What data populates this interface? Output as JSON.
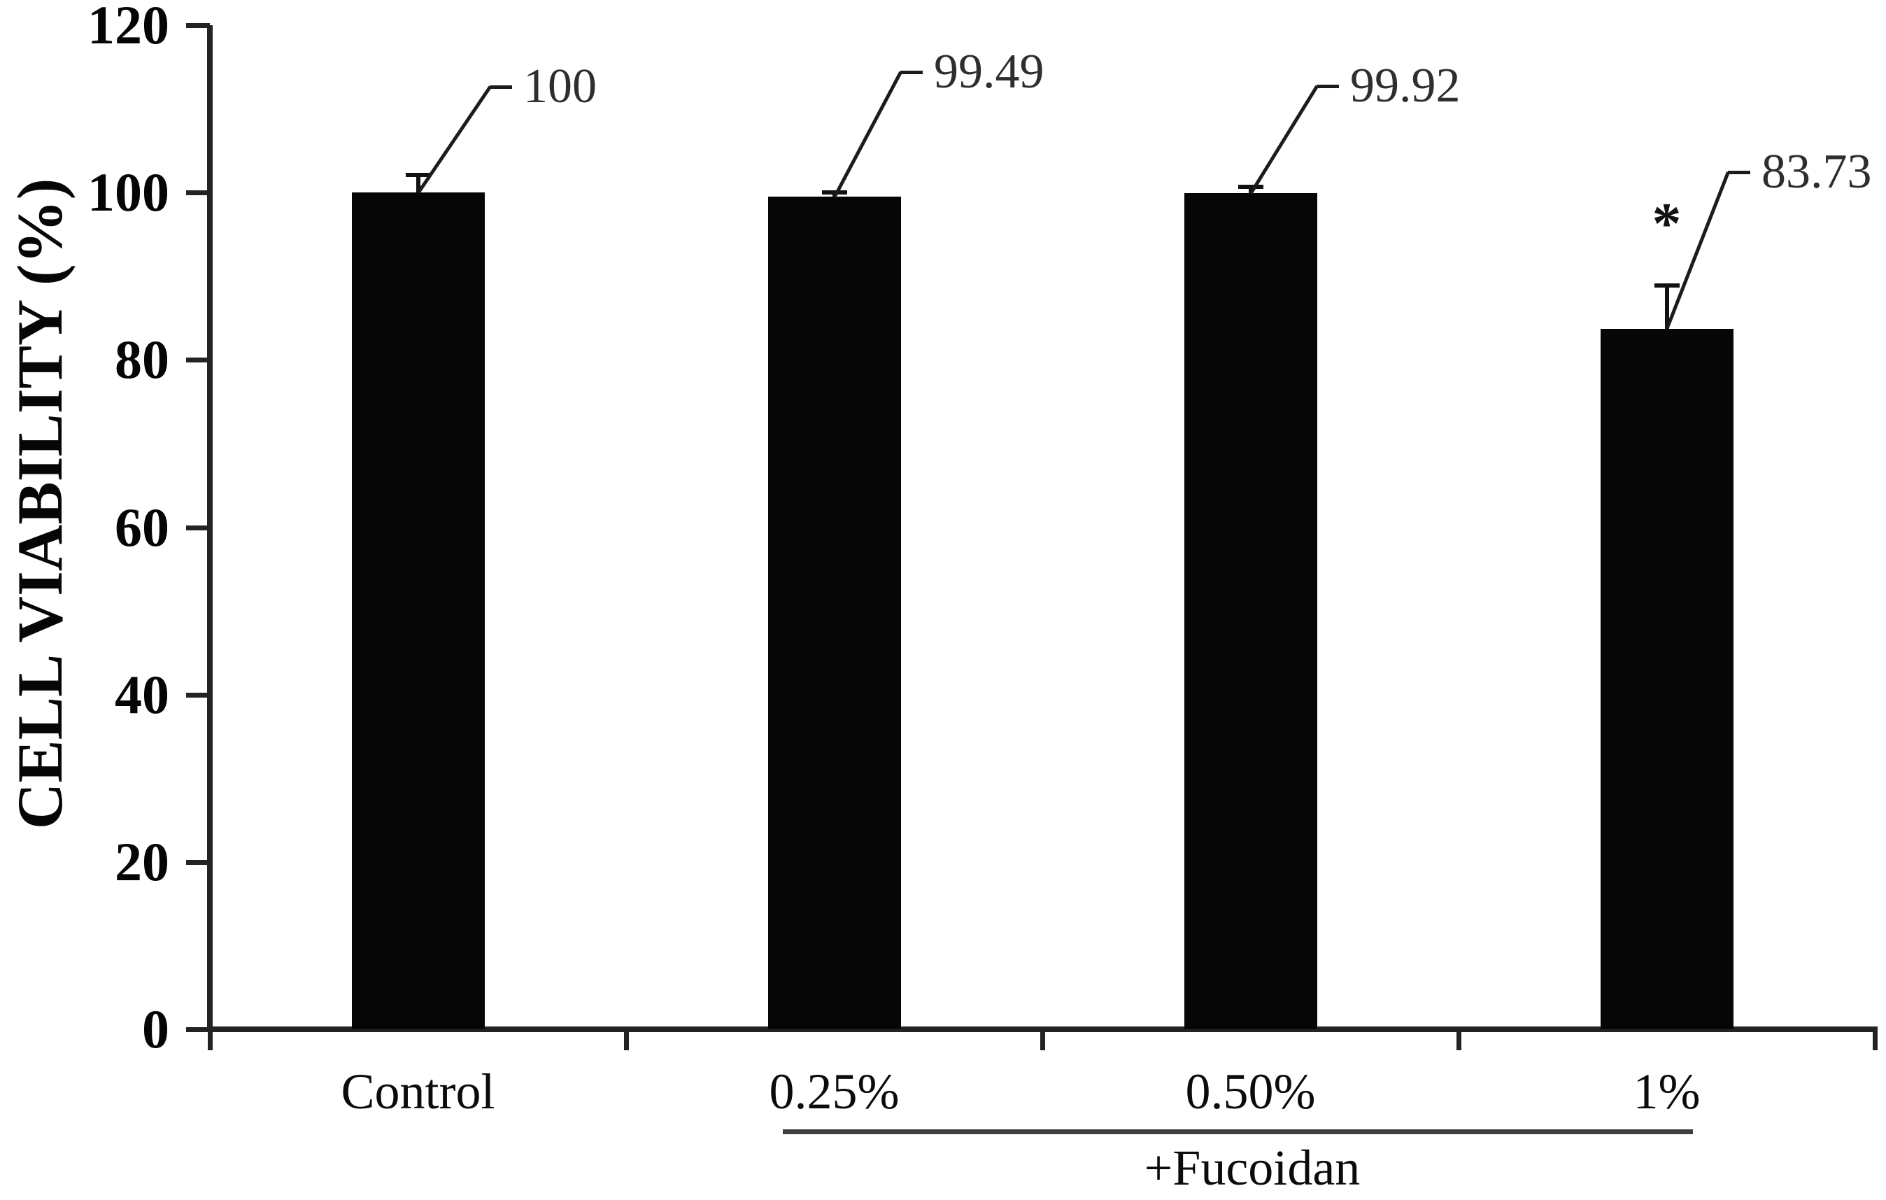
{
  "chart_data": {
    "type": "bar",
    "title": "",
    "ylabel": "CELL VIABILITY (%)",
    "xlabel": "",
    "categories": [
      "Control",
      "0.25%",
      "0.50%",
      "1%"
    ],
    "values": [
      100,
      99.49,
      99.92,
      83.73
    ],
    "data_labels": [
      "100",
      "99.49",
      "99.92",
      "83.73"
    ],
    "errors_plus": [
      2.1,
      0.5,
      0.8,
      5.2
    ],
    "significance": [
      "",
      "",
      "",
      "*"
    ],
    "group_label": "+Fucoidan",
    "group_members": [
      "0.25%",
      "0.50%",
      "1%"
    ],
    "ylim": [
      0,
      120
    ],
    "yticks": [
      0,
      20,
      40,
      60,
      80,
      100,
      120
    ],
    "grid": "off",
    "legend": "none",
    "bar_color": "#060606",
    "axis_color": "#232323",
    "label_color": "#2e2e2e"
  }
}
